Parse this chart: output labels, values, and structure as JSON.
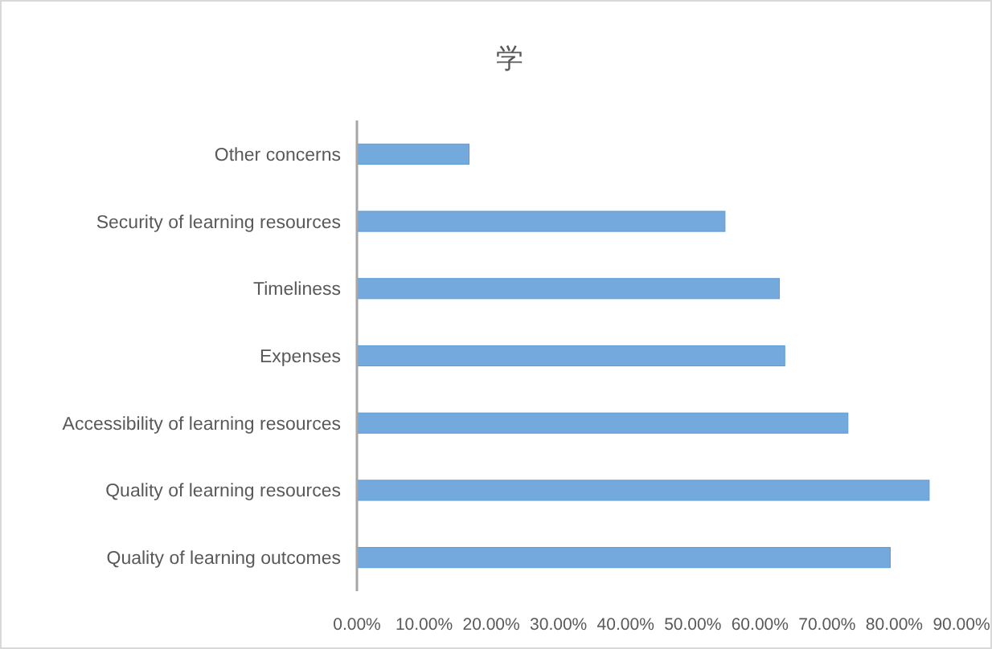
{
  "chart_data": {
    "type": "bar",
    "orientation": "horizontal",
    "title": "学",
    "categories": [
      "Other concerns",
      "Security of learning resources",
      "Timeliness",
      "Expenses",
      "Accessibility of learning resources",
      "Quality of learning resources",
      "Quality of learning outcomes"
    ],
    "values": [
      16.7,
      54.8,
      62.9,
      63.7,
      73.1,
      85.2,
      79.4
    ],
    "color": "#74a9dd",
    "xlim": [
      0,
      90
    ],
    "xticks": [
      {
        "value": 0,
        "label": "0.00%"
      },
      {
        "value": 10,
        "label": "10.00%"
      },
      {
        "value": 20,
        "label": "20.00%"
      },
      {
        "value": 30,
        "label": "30.00%"
      },
      {
        "value": 40,
        "label": "40.00%"
      },
      {
        "value": 50,
        "label": "50.00%"
      },
      {
        "value": 60,
        "label": "60.00%"
      },
      {
        "value": 70,
        "label": "70.00%"
      },
      {
        "value": 80,
        "label": "80.00%"
      },
      {
        "value": 90,
        "label": "90.00%"
      }
    ],
    "grid": false
  }
}
